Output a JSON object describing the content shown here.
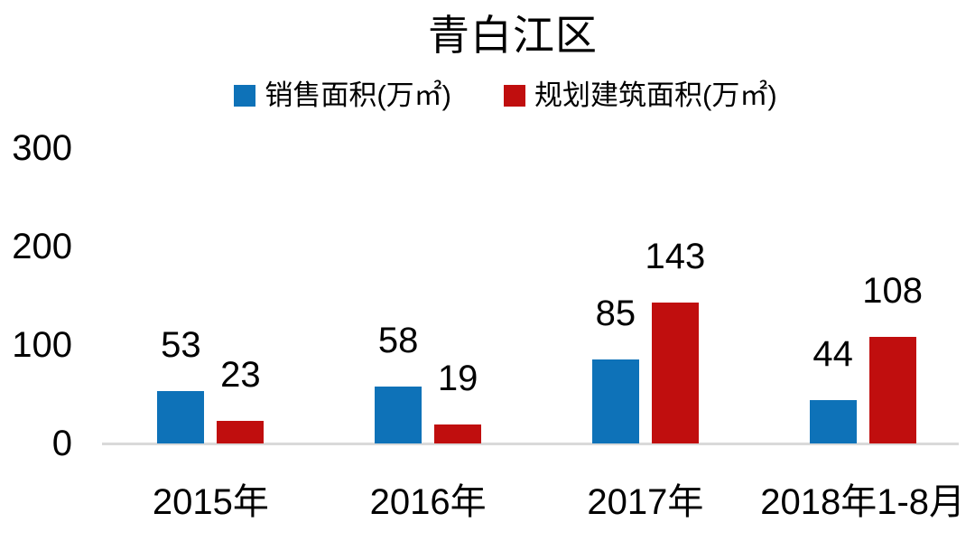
{
  "chart_data": {
    "type": "bar",
    "title": "青白江区",
    "categories": [
      "2015年",
      "2016年",
      "2017年",
      "2018年1-8月"
    ],
    "series": [
      {
        "name": "销售面积(万㎡)",
        "color": "#0e72b8",
        "values": [
          53,
          58,
          85,
          44
        ]
      },
      {
        "name": "规划建筑面积(万㎡)",
        "color": "#c00e0e",
        "values": [
          23,
          19,
          143,
          108
        ]
      }
    ],
    "yticks": [
      0,
      100,
      200,
      300
    ],
    "ylim": [
      0,
      300
    ],
    "grid": false,
    "legend_position": "top",
    "data_labels": true,
    "axis_line_color": "#d9d9d9",
    "text_color": "#000000",
    "background_color": "#ffffff"
  }
}
